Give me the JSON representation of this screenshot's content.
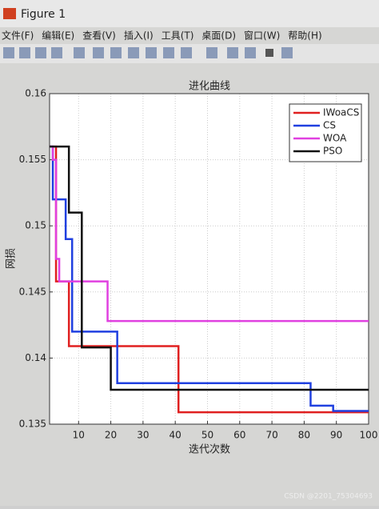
{
  "window": {
    "title": "Figure 1",
    "menu": [
      "文件(F)",
      "编辑(E)",
      "查看(V)",
      "插入(I)",
      "工具(T)",
      "桌面(D)",
      "窗口(W)",
      "帮助(H)"
    ],
    "watermark": "CSDN @2201_75304693"
  },
  "chart_data": {
    "type": "line",
    "title": "进化曲线",
    "x_label": "迭代次数",
    "y_label": "网损",
    "xlim": [
      1,
      100
    ],
    "xticks": [
      10,
      20,
      30,
      40,
      50,
      60,
      70,
      80,
      90,
      100
    ],
    "ylim": [
      0.135,
      0.16
    ],
    "yticks": [
      0.135,
      0.14,
      0.145,
      0.15,
      0.155,
      0.16
    ],
    "grid": true,
    "legend": "upper right",
    "series": [
      {
        "name": "IWoaCS",
        "color": "#e02020",
        "x": [
          1,
          3,
          3,
          7,
          7,
          41,
          41,
          100
        ],
        "values": [
          0.156,
          0.156,
          0.1458,
          0.1458,
          0.1409,
          0.1409,
          0.1359,
          0.1359
        ]
      },
      {
        "name": "CS",
        "color": "#2040e0",
        "x": [
          1,
          2,
          2,
          6,
          6,
          8,
          8,
          22,
          22,
          82,
          82,
          89,
          89,
          100
        ],
        "values": [
          0.156,
          0.156,
          0.152,
          0.152,
          0.149,
          0.149,
          0.142,
          0.142,
          0.1381,
          0.1381,
          0.1364,
          0.1364,
          0.136,
          0.136
        ]
      },
      {
        "name": "WOA",
        "color": "#e040e0",
        "x": [
          1,
          2,
          2,
          3,
          3,
          4,
          4,
          19,
          19,
          100
        ],
        "values": [
          0.156,
          0.156,
          0.155,
          0.155,
          0.1475,
          0.1475,
          0.1458,
          0.1458,
          0.1428,
          0.1428
        ]
      },
      {
        "name": "PSO",
        "color": "#111111",
        "x": [
          1,
          7,
          7,
          11,
          11,
          20,
          20,
          100
        ],
        "values": [
          0.156,
          0.156,
          0.151,
          0.151,
          0.1408,
          0.1408,
          0.1376,
          0.1376
        ]
      }
    ]
  }
}
